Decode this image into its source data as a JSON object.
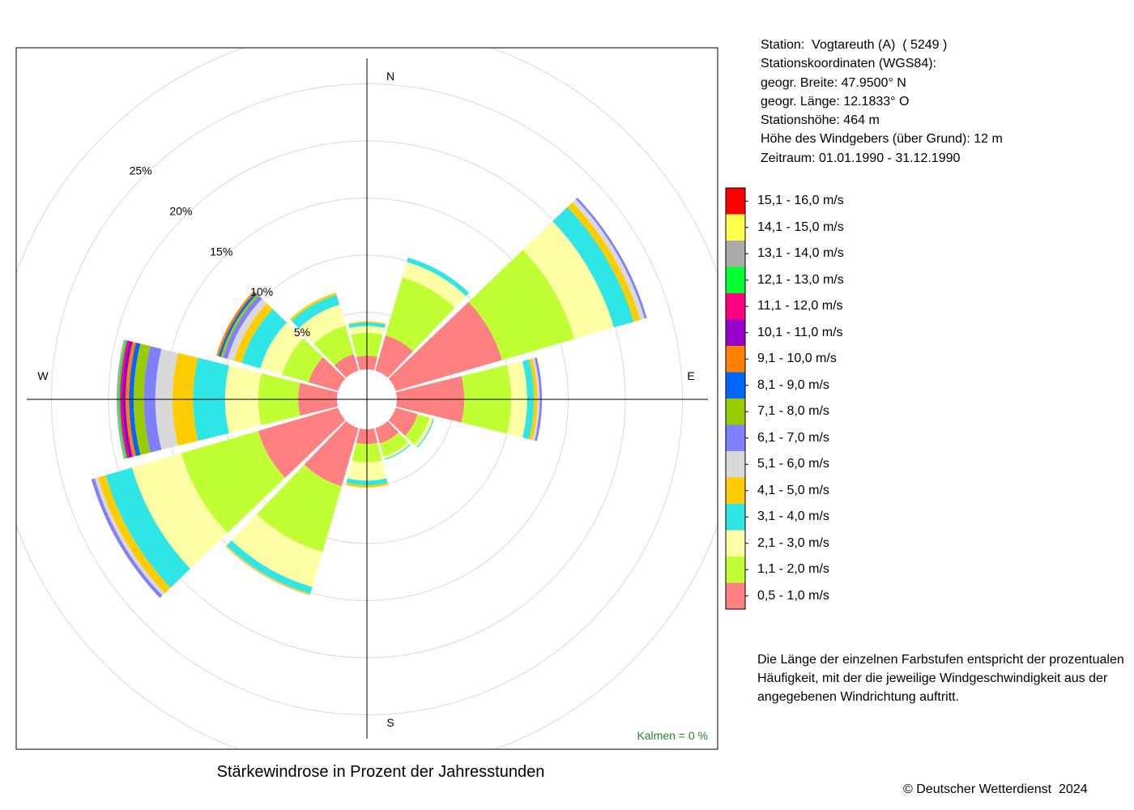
{
  "station": {
    "line1": "Station:  Vogtareuth (A)  ( 5249 )",
    "line2": "Stationskoordinaten (WGS84):",
    "line3": "geogr. Breite: 47.9500° N",
    "line4": "geogr. Länge: 12.1833° O",
    "line5": "Stationshöhe: 464 m",
    "line6": "Höhe des Windgebers (über Grund): 12 m",
    "line7": "Zeitraum: 01.01.1990 - 31.12.1990"
  },
  "note": "Die Länge der einzelnen Farbstufen entspricht der prozentualen Häufigkeit, mit der die jeweilige Windgeschwindigkeit aus der angegebenen Windrichtung auftritt.",
  "copyright": "© Deutscher Wetterdienst  2024",
  "calm_label": "Kalmen  =  0 %",
  "chart_data": {
    "type": "windrose",
    "title": "Stärkewindrose in Prozent der Jahresstunden",
    "direction_labels": [
      "N",
      "E",
      "S",
      "W"
    ],
    "radial_ticks": [
      {
        "value": 5,
        "label": "5%"
      },
      {
        "value": 10,
        "label": "10%"
      },
      {
        "value": 15,
        "label": "15%"
      },
      {
        "value": 20,
        "label": "20%"
      },
      {
        "value": 25,
        "label": "25%"
      }
    ],
    "radial_max": 30,
    "hole": 0.5,
    "sector_width_deg": 30,
    "speed_classes": [
      {
        "label": "0,5 - 1,0 m/s",
        "color": "#FF8080"
      },
      {
        "label": "1,1 - 2,0 m/s",
        "color": "#BFFF33"
      },
      {
        "label": "2,1 - 3,0 m/s",
        "color": "#FFFFA6"
      },
      {
        "label": "3,1 - 4,0 m/s",
        "color": "#2EE6E6"
      },
      {
        "label": "4,1 - 5,0 m/s",
        "color": "#FFCC00"
      },
      {
        "label": "5,1 - 6,0 m/s",
        "color": "#D9D9D9"
      },
      {
        "label": "6,1 - 7,0 m/s",
        "color": "#8080FF"
      },
      {
        "label": "7,1 - 8,0 m/s",
        "color": "#99CC00"
      },
      {
        "label": "8,1 - 9,0 m/s",
        "color": "#0066FF"
      },
      {
        "label": "9,1 - 10,0 m/s",
        "color": "#FF8000"
      },
      {
        "label": "10,1 - 11,0 m/s",
        "color": "#9900CC"
      },
      {
        "label": "11,1 - 12,0 m/s",
        "color": "#FF0080"
      },
      {
        "label": "12,1 - 13,0 m/s",
        "color": "#00FF33"
      },
      {
        "label": "13,1 - 14,0 m/s",
        "color": "#ABABAB"
      },
      {
        "label": "14,1 - 15,0 m/s",
        "color": "#FFFF4D"
      },
      {
        "label": "15,1 - 16,0 m/s",
        "color": "#FF0000"
      }
    ],
    "sectors": [
      {
        "direction": 0,
        "values": [
          1.2,
          2.0,
          0.6,
          0.3,
          0.1
        ]
      },
      {
        "direction": 30,
        "values": [
          3.2,
          5.3,
          1.4,
          0.4
        ]
      },
      {
        "direction": 60,
        "values": [
          9.7,
          6.6,
          3.6,
          1.8,
          0.6,
          0.4,
          0.2
        ]
      },
      {
        "direction": 90,
        "values": [
          5.9,
          4.1,
          1.4,
          0.6,
          0.3,
          0.2,
          0.2
        ]
      },
      {
        "direction": 120,
        "values": [
          2.0,
          1.1,
          0.3,
          0.1
        ]
      },
      {
        "direction": 150,
        "values": [
          1.4,
          1.2,
          0.2,
          0.1
        ]
      },
      {
        "direction": 180,
        "values": [
          1.3,
          1.6,
          1.6,
          0.4,
          0.2
        ]
      },
      {
        "direction": 210,
        "values": [
          5.3,
          6.0,
          3.2,
          0.6,
          0.1,
          0.1
        ]
      },
      {
        "direction": 240,
        "values": [
          7.3,
          7.0,
          4.5,
          2.4,
          0.7,
          0.3,
          0.3
        ]
      },
      {
        "direction": 270,
        "values": [
          3.4,
          3.5,
          2.9,
          2.8,
          1.8,
          1.5,
          1.0,
          0.9,
          0.4,
          0.3,
          0.3,
          0.2,
          0.15,
          0.15
        ]
      },
      {
        "direction": 300,
        "values": [
          2.7,
          2.4,
          2.0,
          1.7,
          0.7,
          0.6,
          0.4,
          0.2,
          0.2,
          0.2
        ]
      },
      {
        "direction": 330,
        "values": [
          1.5,
          2.6,
          1.9,
          0.9,
          0.2
        ]
      }
    ]
  }
}
